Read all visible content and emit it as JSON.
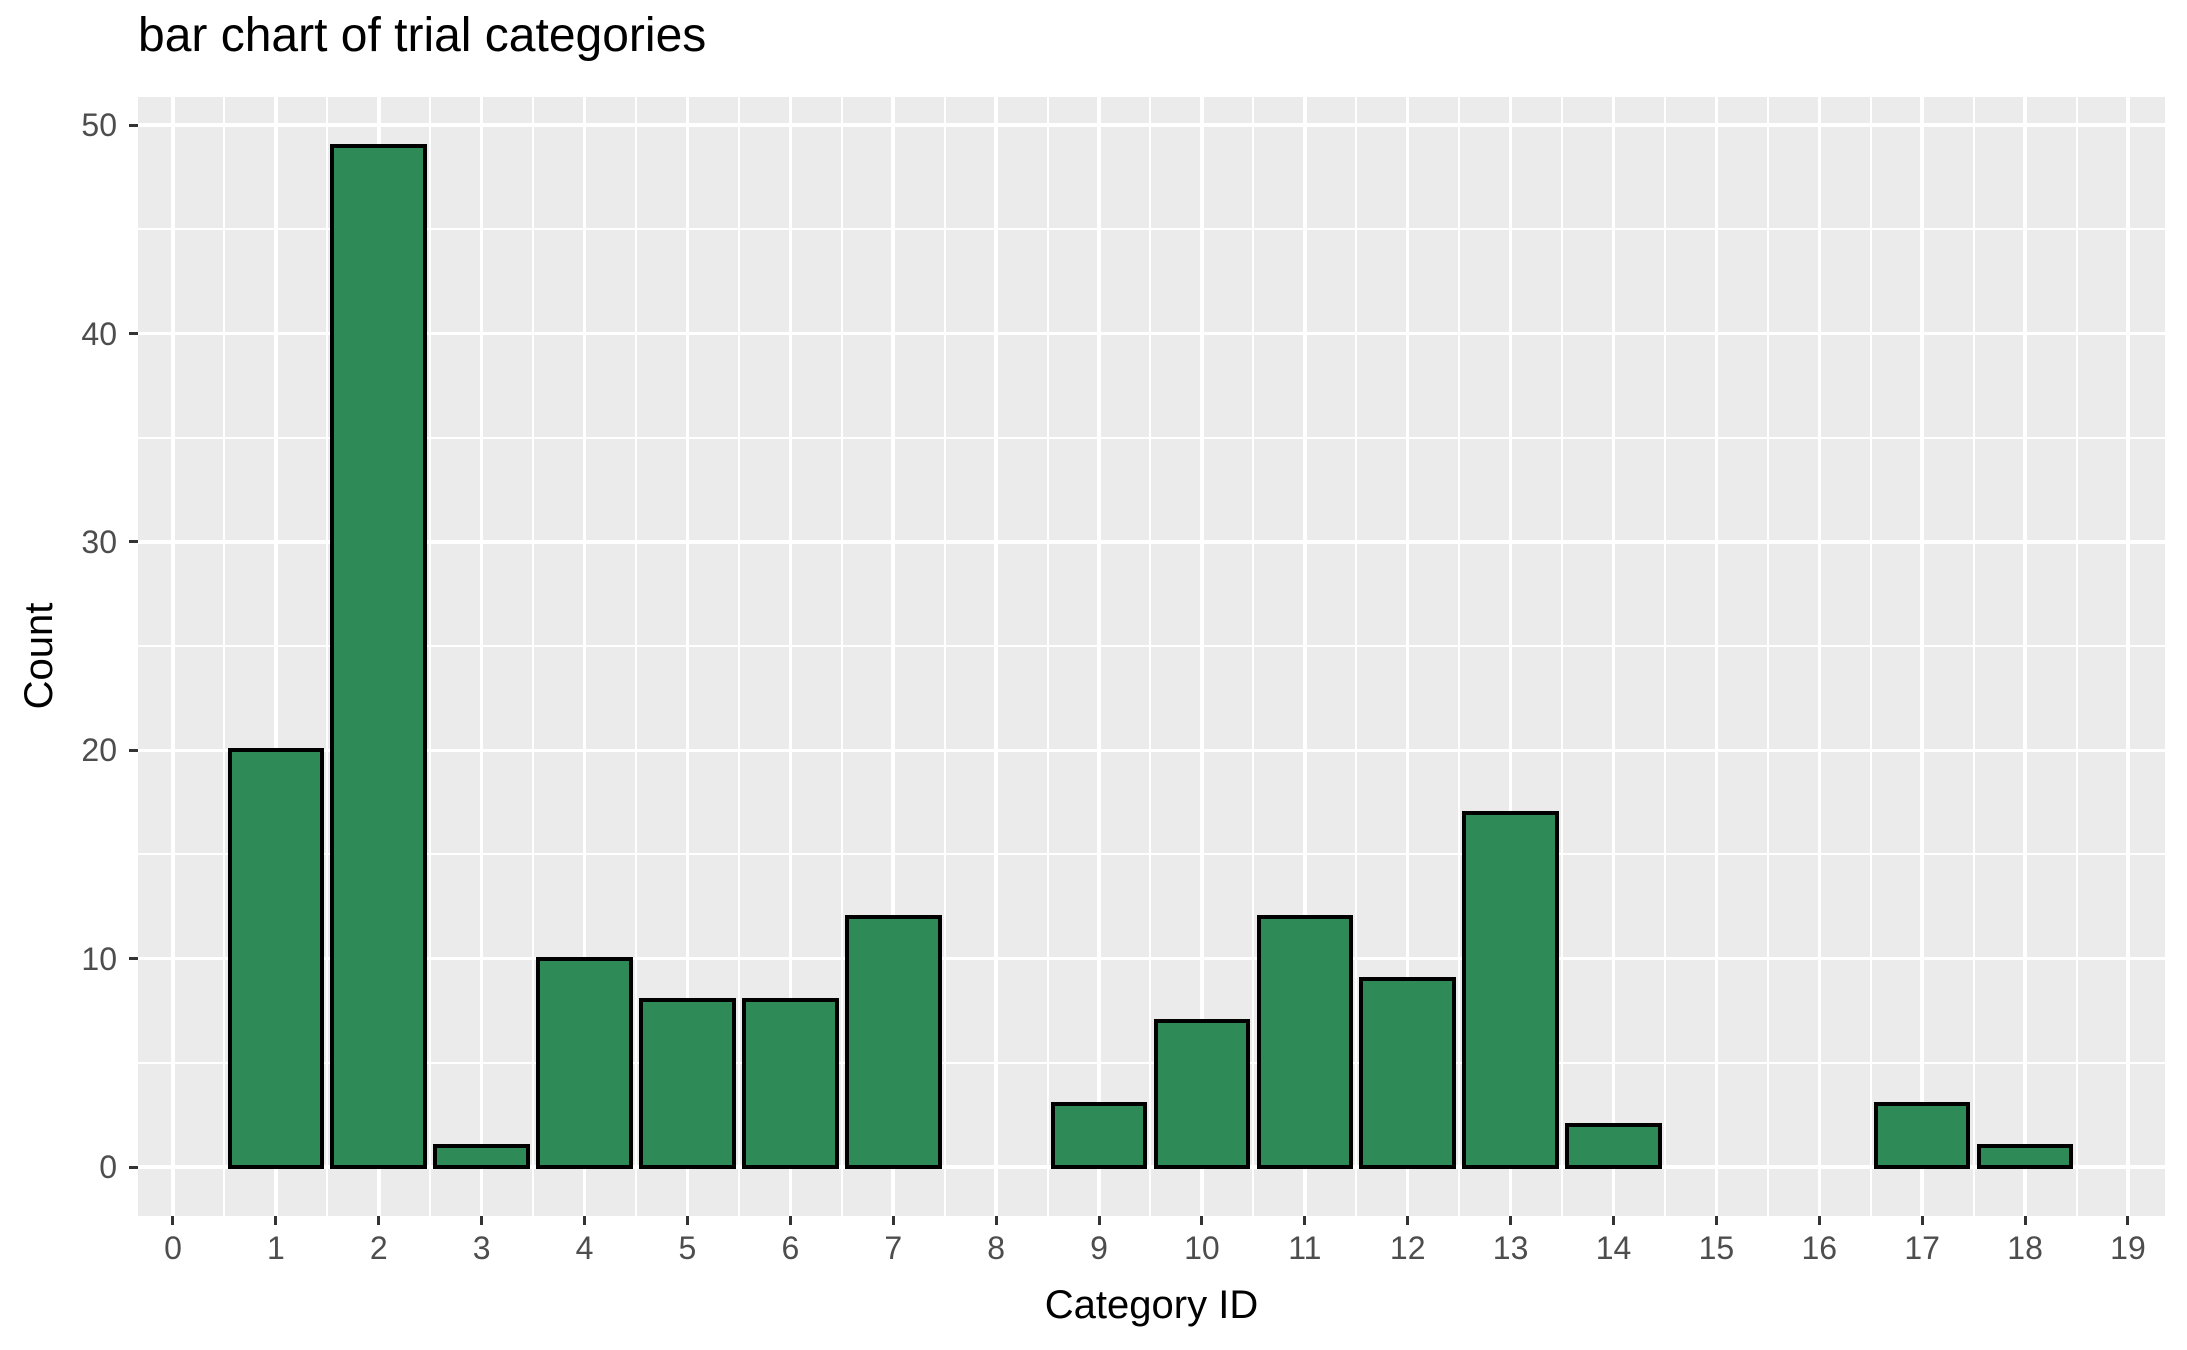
{
  "title": "bar chart of trial categories",
  "chart_data": {
    "type": "bar",
    "title": "bar chart of trial categories",
    "xlabel": "Category ID",
    "ylabel": "Count",
    "categories": [
      1,
      2,
      3,
      4,
      5,
      6,
      7,
      8,
      9,
      10,
      11,
      12,
      13,
      14,
      15,
      16,
      17,
      18
    ],
    "values": [
      20,
      49,
      1,
      10,
      8,
      8,
      12,
      0,
      3,
      7,
      12,
      9,
      17,
      2,
      0,
      0,
      3,
      1
    ],
    "x_ticks": [
      0,
      1,
      2,
      3,
      4,
      5,
      6,
      7,
      8,
      9,
      10,
      11,
      12,
      13,
      14,
      15,
      16,
      17,
      18,
      19
    ],
    "y_ticks": [
      0,
      10,
      20,
      30,
      40,
      50
    ],
    "x_minor_ticks": [
      0.5,
      1.5,
      2.5,
      3.5,
      4.5,
      5.5,
      6.5,
      7.5,
      8.5,
      9.5,
      10.5,
      11.5,
      12.5,
      13.5,
      14.5,
      15.5,
      16.5,
      17.5,
      18.5
    ],
    "y_minor_ticks": [
      5,
      15,
      25,
      35,
      45
    ],
    "xlim": [
      -0.34,
      19.36
    ],
    "ylim": [
      -2.35,
      51.35
    ],
    "bar_width": 0.9,
    "grid": true,
    "legend": false,
    "colors": {
      "bar_fill": "#2e8b57",
      "bar_border": "#000000",
      "panel_background": "#ebebeb",
      "gridline": "#ffffff",
      "tick_mark": "#333333",
      "tick_label": "#4d4d4d",
      "title_text": "#000000"
    }
  }
}
